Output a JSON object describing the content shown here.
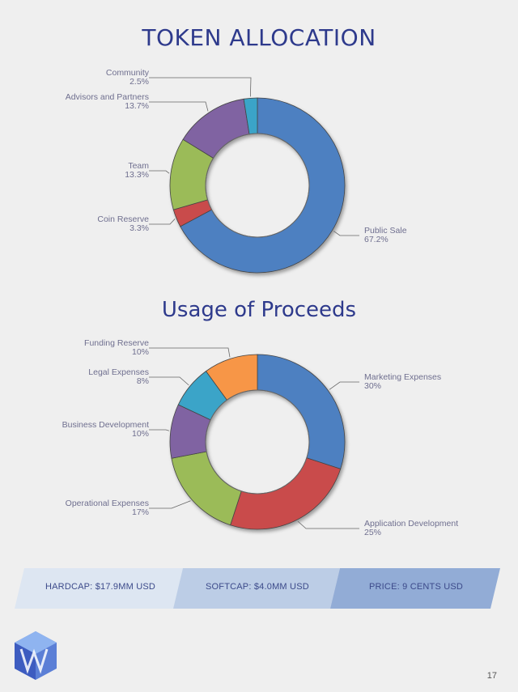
{
  "chart_data": [
    {
      "type": "pie",
      "title": "TOKEN ALLOCATION",
      "slices": [
        {
          "label": "Public Sale",
          "pct_label": "67.2%",
          "value": 67.2,
          "color": "#4e80c1"
        },
        {
          "label": "Coin Reserve",
          "pct_label": "3.3%",
          "value": 3.3,
          "color": "#c94c4c"
        },
        {
          "label": "Team",
          "pct_label": "13.3%",
          "value": 13.3,
          "color": "#9bbb59"
        },
        {
          "label": "Advisors and Partners",
          "pct_label": "13.7%",
          "value": 13.7,
          "color": "#8064a2"
        },
        {
          "label": "Community",
          "pct_label": "2.5%",
          "value": 2.5,
          "color": "#3aa4c8"
        }
      ]
    },
    {
      "type": "pie",
      "title": "Usage of Proceeds",
      "slices": [
        {
          "label": "Marketing Expenses",
          "pct_label": "30%",
          "value": 30,
          "color": "#4e80c1"
        },
        {
          "label": "Application Development",
          "pct_label": "25%",
          "value": 25,
          "color": "#c94c4c"
        },
        {
          "label": "Operational Expenses",
          "pct_label": "17%",
          "value": 17,
          "color": "#9bbb59"
        },
        {
          "label": "Business Development",
          "pct_label": "10%",
          "value": 10,
          "color": "#8064a2"
        },
        {
          "label": "Legal Expenses",
          "pct_label": "8%",
          "value": 8,
          "color": "#3aa4c8"
        },
        {
          "label": "Funding Reserve",
          "pct_label": "10%",
          "value": 10,
          "color": "#f79646"
        }
      ]
    }
  ],
  "banner": {
    "hardcap": "HARDCAP: $17.9MM USD",
    "softcap": "SOFTCAP: $4.0MM USD",
    "price": "PRICE: 9 CENTS USD",
    "colors": [
      "#dde6f2",
      "#bccde6",
      "#92acd6"
    ]
  },
  "page_number": "17"
}
